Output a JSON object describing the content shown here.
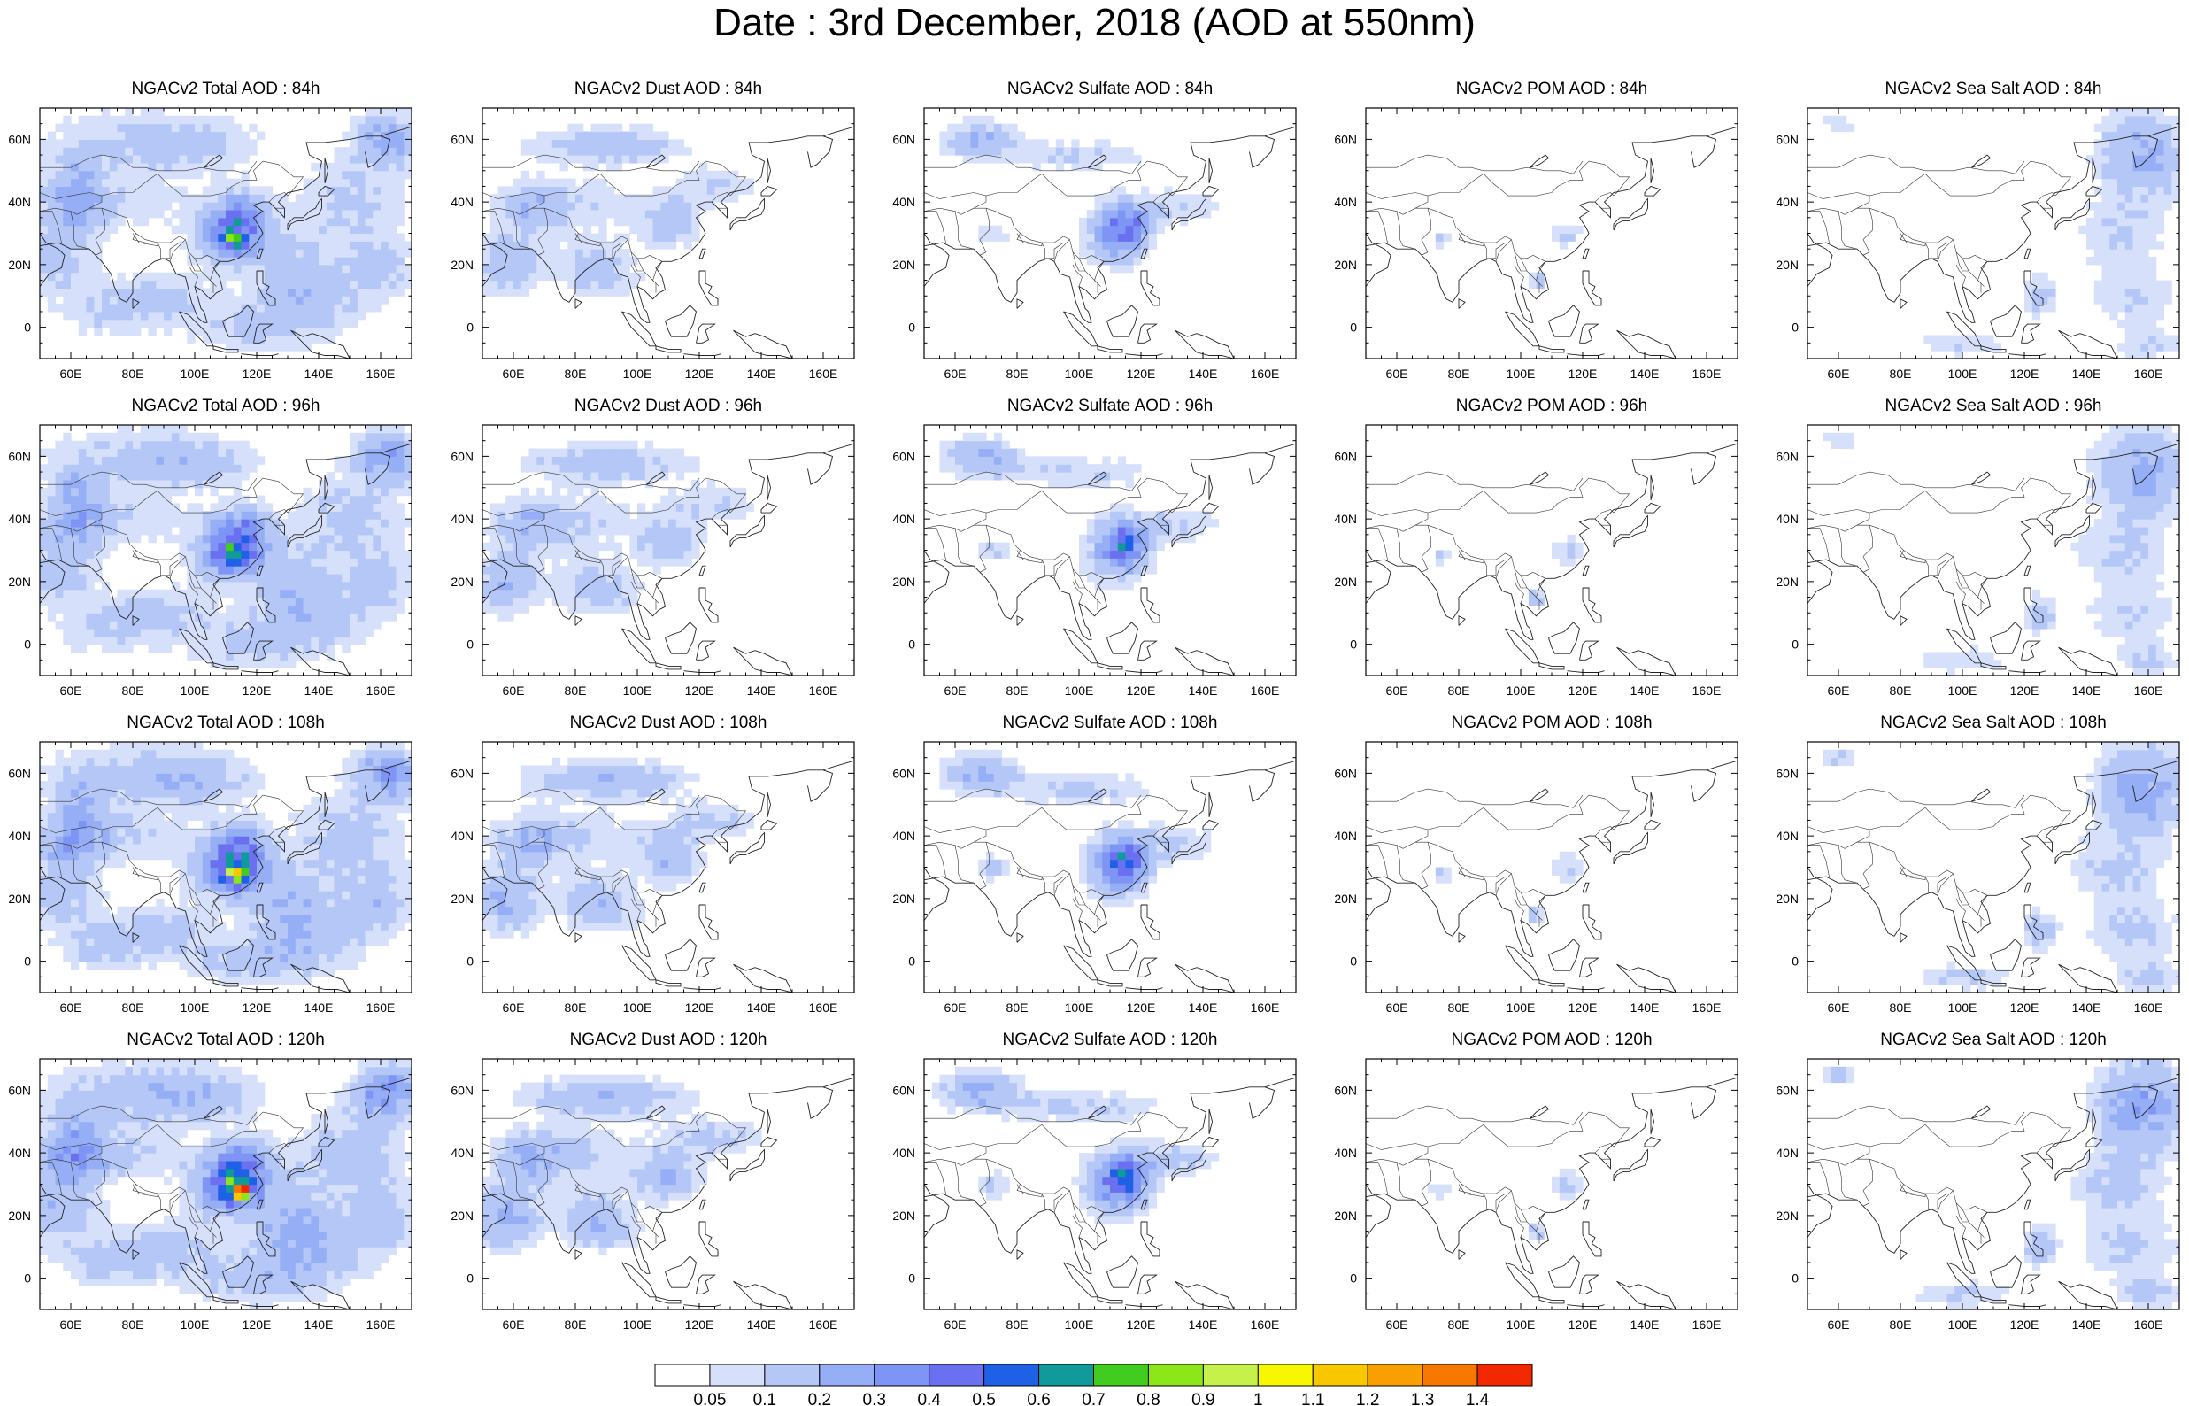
{
  "title": "Date : 3rd December, 2018 (AOD at 550nm)",
  "columns": [
    {
      "id": "total",
      "label": "NGACv2 Total AOD"
    },
    {
      "id": "dust",
      "label": "NGACv2 Dust AOD"
    },
    {
      "id": "sulfate",
      "label": "NGACv2 Sulfate AOD"
    },
    {
      "id": "pom",
      "label": "NGACv2 POM AOD"
    },
    {
      "id": "seasalt",
      "label": "NGACv2 Sea Salt AOD"
    }
  ],
  "panels": [
    [
      "NGACv2 Total AOD : 84h",
      "NGACv2 Dust AOD : 84h",
      "NGACv2 Sulfate AOD : 84h",
      "NGACv2 POM AOD : 84h",
      "NGACv2 Sea Salt AOD : 84h"
    ],
    [
      "NGACv2 Total AOD : 96h",
      "NGACv2 Dust AOD : 96h",
      "NGACv2 Sulfate AOD : 96h",
      "NGACv2 POM AOD : 96h",
      "NGACv2 Sea Salt AOD : 96h"
    ],
    [
      "NGACv2 Total AOD : 108h",
      "NGACv2 Dust AOD : 108h",
      "NGACv2 Sulfate AOD : 108h",
      "NGACv2 POM AOD : 108h",
      "NGACv2 Sea Salt AOD : 108h"
    ],
    [
      "NGACv2 Total AOD : 120h",
      "NGACv2 Dust AOD : 120h",
      "NGACv2 Sulfate AOD : 120h",
      "NGACv2 POM AOD : 120h",
      "NGACv2 Sea Salt  AOD : 120h"
    ]
  ],
  "map_extent": {
    "lon": [
      50,
      170
    ],
    "lat": [
      -10,
      70
    ]
  },
  "lon_ticks": [
    60,
    80,
    100,
    120,
    140,
    160
  ],
  "lon_tick_labels": [
    "60E",
    "80E",
    "100E",
    "120E",
    "140E",
    "160E"
  ],
  "lat_ticks": [
    0,
    20,
    40,
    60
  ],
  "lat_tick_labels": [
    "0",
    "20N",
    "40N",
    "60N"
  ],
  "colorbar": {
    "labels": [
      "0.05",
      "0.1",
      "0.2",
      "0.3",
      "0.4",
      "0.5",
      "0.6",
      "0.7",
      "0.8",
      "0.9",
      "1",
      "1.1",
      "1.2",
      "1.3",
      "1.4"
    ],
    "colors": [
      "#ffffff",
      "#d6e0fa",
      "#b5c7f7",
      "#96aef6",
      "#7f95f5",
      "#6a70f0",
      "#1e60e6",
      "#109a9a",
      "#43cc20",
      "#8ce61a",
      "#c6f04a",
      "#f7f700",
      "#f9c700",
      "#f9a000",
      "#f77800",
      "#f22800"
    ]
  },
  "blobs": {
    "total": [
      [
        55,
        22,
        14,
        10,
        0.14
      ],
      [
        60,
        38,
        10,
        8,
        0.18
      ],
      [
        62,
        50,
        8,
        8,
        0.14
      ],
      [
        80,
        60,
        30,
        10,
        0.1
      ],
      [
        100,
        58,
        20,
        8,
        0.1
      ],
      [
        75,
        40,
        20,
        8,
        0.1
      ],
      [
        110,
        30,
        12,
        10,
        0.22
      ],
      [
        115,
        35,
        8,
        8,
        0.3
      ],
      [
        112,
        28,
        5,
        4,
        0.35
      ],
      [
        130,
        20,
        12,
        12,
        0.12
      ],
      [
        140,
        10,
        18,
        10,
        0.12
      ],
      [
        120,
        0,
        22,
        8,
        0.12
      ],
      [
        90,
        10,
        15,
        8,
        0.12
      ],
      [
        150,
        40,
        18,
        14,
        0.12
      ],
      [
        162,
        60,
        10,
        8,
        0.25
      ],
      [
        70,
        5,
        15,
        8,
        0.1
      ],
      [
        160,
        20,
        10,
        10,
        0.12
      ]
    ],
    "dust": [
      [
        58,
        20,
        10,
        10,
        0.18
      ],
      [
        65,
        38,
        10,
        8,
        0.14
      ],
      [
        80,
        58,
        20,
        6,
        0.1
      ],
      [
        100,
        58,
        20,
        6,
        0.1
      ],
      [
        80,
        40,
        20,
        8,
        0.1
      ],
      [
        85,
        22,
        12,
        8,
        0.1
      ],
      [
        110,
        33,
        10,
        8,
        0.15
      ],
      [
        125,
        45,
        15,
        6,
        0.1
      ],
      [
        90,
        15,
        12,
        6,
        0.1
      ]
    ],
    "sulfate": [
      [
        68,
        60,
        12,
        6,
        0.18
      ],
      [
        100,
        55,
        25,
        5,
        0.1
      ],
      [
        112,
        30,
        10,
        10,
        0.22
      ],
      [
        115,
        32,
        6,
        6,
        0.3
      ],
      [
        130,
        38,
        15,
        6,
        0.1
      ],
      [
        72,
        30,
        5,
        4,
        0.1
      ]
    ],
    "pom": [
      [
        115,
        30,
        6,
        5,
        0.1
      ],
      [
        105,
        15,
        3,
        3,
        0.12
      ],
      [
        74,
        28,
        3,
        3,
        0.1
      ]
    ],
    "seasalt": [
      [
        158,
        55,
        14,
        14,
        0.22
      ],
      [
        150,
        30,
        15,
        10,
        0.1
      ],
      [
        155,
        10,
        15,
        10,
        0.1
      ],
      [
        125,
        10,
        5,
        6,
        0.15
      ],
      [
        60,
        65,
        5,
        3,
        0.1
      ],
      [
        100,
        -5,
        15,
        4,
        0.1
      ],
      [
        160,
        -5,
        10,
        5,
        0.1
      ]
    ]
  },
  "hotspots": {
    "total": [
      [
        115,
        28,
        0.9
      ]
    ]
  },
  "row_gain": [
    1.0,
    1.05,
    1.15,
    1.25
  ]
}
